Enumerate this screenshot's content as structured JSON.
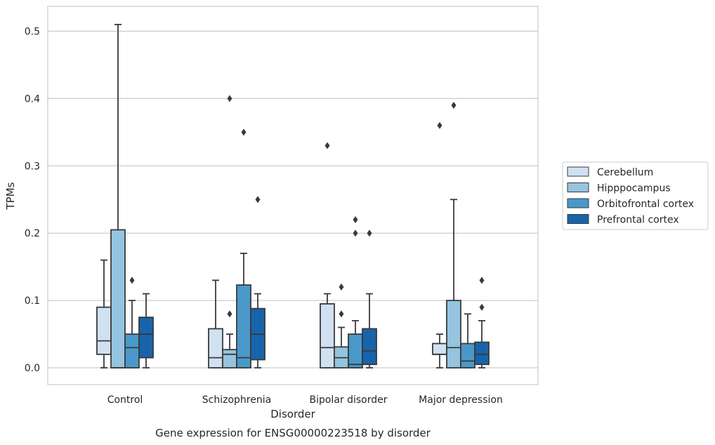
{
  "chart_data": {
    "type": "box",
    "title": "Gene expression for ENSG00000223518 by disorder",
    "xlabel": "Disorder",
    "ylabel": "TPMs",
    "ylim": [
      -0.025,
      0.535
    ],
    "yticks": [
      "0.0",
      "0.1",
      "0.2",
      "0.3",
      "0.4",
      "0.5"
    ],
    "ytick_values": [
      0.0,
      0.1,
      0.2,
      0.3,
      0.4,
      0.5
    ],
    "grid": true,
    "legend_position": "right",
    "categories": [
      "Control",
      "Schizophrenia",
      "Bipolar disorder",
      "Major depression"
    ],
    "series": [
      {
        "name": "Cerebellum",
        "color": "#d0e1f2",
        "boxes": [
          {
            "min": 0.0,
            "q1": 0.02,
            "median": 0.04,
            "q3": 0.09,
            "max": 0.16,
            "outliers": []
          },
          {
            "min": 0.0,
            "q1": 0.0,
            "median": 0.015,
            "q3": 0.058,
            "max": 0.13,
            "outliers": []
          },
          {
            "min": 0.0,
            "q1": 0.0,
            "median": 0.03,
            "q3": 0.095,
            "max": 0.11,
            "outliers": [
              0.33
            ]
          },
          {
            "min": 0.0,
            "q1": 0.02,
            "median": 0.02,
            "q3": 0.036,
            "max": 0.05,
            "outliers": [
              0.36
            ]
          }
        ]
      },
      {
        "name": "Hipppocampus",
        "color": "#94c4df",
        "boxes": [
          {
            "min": 0.0,
            "q1": 0.0,
            "median": 0.0,
            "q3": 0.205,
            "max": 0.51,
            "outliers": []
          },
          {
            "min": 0.0,
            "q1": 0.0,
            "median": 0.02,
            "q3": 0.027,
            "max": 0.05,
            "outliers": [
              0.08,
              0.4
            ]
          },
          {
            "min": 0.0,
            "q1": 0.0,
            "median": 0.015,
            "q3": 0.031,
            "max": 0.06,
            "outliers": [
              0.08,
              0.12
            ]
          },
          {
            "min": 0.0,
            "q1": 0.0,
            "median": 0.03,
            "q3": 0.1,
            "max": 0.25,
            "outliers": [
              0.39
            ]
          }
        ]
      },
      {
        "name": "Orbitofrontal cortex",
        "color": "#4a98c9",
        "boxes": [
          {
            "min": 0.0,
            "q1": 0.0,
            "median": 0.03,
            "q3": 0.05,
            "max": 0.1,
            "outliers": [
              0.13
            ]
          },
          {
            "min": 0.0,
            "q1": 0.0,
            "median": 0.015,
            "q3": 0.123,
            "max": 0.17,
            "outliers": [
              0.35
            ]
          },
          {
            "min": 0.0,
            "q1": 0.0,
            "median": 0.005,
            "q3": 0.05,
            "max": 0.07,
            "outliers": [
              0.2,
              0.22
            ]
          },
          {
            "min": 0.0,
            "q1": 0.0,
            "median": 0.01,
            "q3": 0.036,
            "max": 0.08,
            "outliers": []
          }
        ]
      },
      {
        "name": "Prefrontal cortex",
        "color": "#1764ab",
        "boxes": [
          {
            "min": 0.0,
            "q1": 0.015,
            "median": 0.05,
            "q3": 0.075,
            "max": 0.11,
            "outliers": []
          },
          {
            "min": 0.0,
            "q1": 0.012,
            "median": 0.05,
            "q3": 0.088,
            "max": 0.11,
            "outliers": [
              0.25
            ]
          },
          {
            "min": 0.0,
            "q1": 0.005,
            "median": 0.025,
            "q3": 0.058,
            "max": 0.11,
            "outliers": [
              0.2
            ]
          },
          {
            "min": 0.0,
            "q1": 0.005,
            "median": 0.02,
            "q3": 0.038,
            "max": 0.07,
            "outliers": [
              0.09,
              0.13
            ]
          }
        ]
      }
    ]
  }
}
